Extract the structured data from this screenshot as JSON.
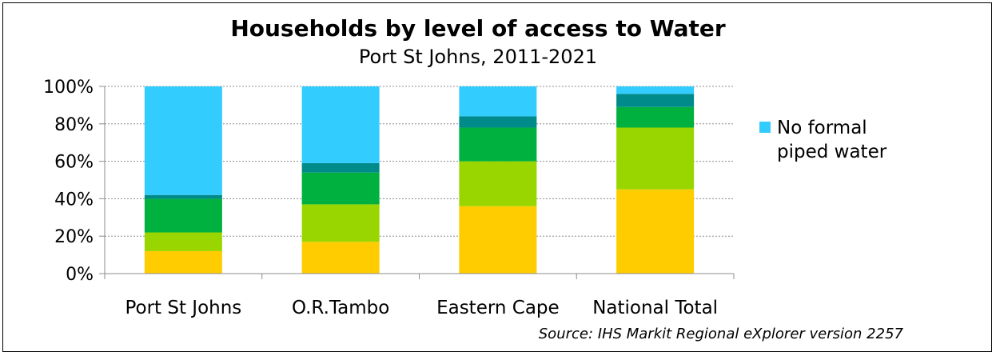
{
  "chart_data": {
    "type": "bar",
    "stacked": true,
    "percent_stacked": true,
    "title": "Households by level of access to Water",
    "subtitle": "Port St Johns, 2011-2021",
    "xlabel": "",
    "ylabel": "",
    "ylim": [
      0,
      100
    ],
    "yticks": [
      "0%",
      "20%",
      "40%",
      "60%",
      "80%",
      "100%"
    ],
    "ytick_values": [
      0,
      20,
      40,
      60,
      80,
      100
    ],
    "grid": true,
    "legend_position": "right",
    "categories": [
      "Port St Johns",
      "O.R.Tambo",
      "Eastern Cape",
      "National Total"
    ],
    "series": [
      {
        "name": "",
        "color": "#ffcc00",
        "values": [
          12,
          17,
          36,
          45
        ]
      },
      {
        "name": "",
        "color": "#99d600",
        "values": [
          10,
          20,
          24,
          33
        ]
      },
      {
        "name": "",
        "color": "#00b140",
        "values": [
          18,
          17,
          18,
          11
        ]
      },
      {
        "name": "",
        "color": "#008b8b",
        "values": [
          2,
          5,
          6,
          7
        ]
      },
      {
        "name": "No formal piped water",
        "color": "#33ccff",
        "values": [
          58,
          41,
          16,
          4
        ]
      }
    ],
    "legend": {
      "entries": [
        {
          "lines": [
            "No formal",
            "piped water"
          ],
          "color": "#33ccff"
        }
      ]
    },
    "source": "Source: IHS Markit Regional eXplorer version 2257"
  }
}
